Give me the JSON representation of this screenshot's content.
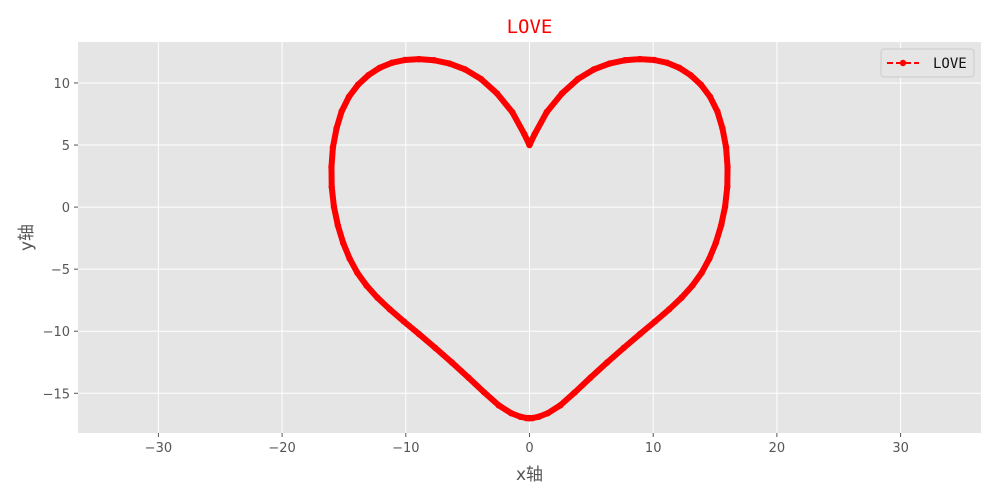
{
  "chart_data": {
    "type": "line",
    "title": "LOVE",
    "xlabel": "x轴",
    "ylabel": "y轴",
    "xlim": [
      -36.5,
      36.5
    ],
    "ylim": [
      -18.2,
      13.3
    ],
    "xticks": [
      -30,
      -20,
      -10,
      0,
      10,
      20,
      30
    ],
    "yticks": [
      10,
      5,
      0,
      -5,
      -10,
      -15
    ],
    "xtick_labels": [
      "−30",
      "−20",
      "−10",
      "0",
      "10",
      "20",
      "30"
    ],
    "ytick_labels": [
      "10",
      "5",
      "0",
      "−5",
      "−10",
      "−15"
    ],
    "grid": true,
    "legend_position": "top-right",
    "series": [
      {
        "name": "LOVE",
        "color": "#ff0000",
        "line_style": "dashed",
        "marker": "circle",
        "x": [
          0,
          0.42,
          1.39,
          2.63,
          3.91,
          5.2,
          6.46,
          7.71,
          8.93,
          10.08,
          11.14,
          12.11,
          13.02,
          13.86,
          14.6,
          15.19,
          15.6,
          15.89,
          16.01,
          15.99,
          15.81,
          15.49,
          15.06,
          14.54,
          13.92,
          13.17,
          12.29,
          11.29,
          10.16,
          8.93,
          7.62,
          6.27,
          4.93,
          3.65,
          2.49,
          1.49,
          0.72,
          0.24,
          0.02,
          0,
          -0.02,
          -0.24,
          -0.72,
          -1.49,
          -2.49,
          -3.65,
          -4.93,
          -6.27,
          -7.62,
          -8.93,
          -10.16,
          -11.29,
          -12.29,
          -13.17,
          -13.92,
          -14.54,
          -15.06,
          -15.49,
          -15.81,
          -15.99,
          -16.01,
          -15.89,
          -15.6,
          -15.19,
          -14.6,
          -13.86,
          -13.02,
          -12.11,
          -11.14,
          -10.08,
          -8.93,
          -7.71,
          -6.46,
          -5.2,
          -3.91,
          -2.63,
          -1.39,
          -0.42,
          0
        ],
        "y": [
          5,
          5.88,
          7.65,
          9.16,
          10.31,
          11.09,
          11.56,
          11.83,
          11.92,
          11.85,
          11.62,
          11.22,
          10.63,
          9.86,
          8.88,
          7.7,
          6.34,
          4.83,
          3.24,
          1.63,
          0.03,
          -1.48,
          -2.89,
          -4.15,
          -5.29,
          -6.33,
          -7.3,
          -8.24,
          -9.21,
          -10.23,
          -11.34,
          -12.52,
          -13.74,
          -14.94,
          -15.97,
          -16.6,
          -16.9,
          -17,
          -17,
          -17,
          -17,
          -17,
          -16.9,
          -16.6,
          -15.97,
          -14.94,
          -13.74,
          -12.52,
          -11.34,
          -10.23,
          -9.21,
          -8.24,
          -7.3,
          -6.33,
          -5.29,
          -4.15,
          -2.89,
          -1.48,
          0.03,
          1.63,
          3.24,
          4.83,
          6.34,
          7.7,
          8.88,
          9.86,
          10.63,
          11.22,
          11.62,
          11.85,
          11.92,
          11.83,
          11.56,
          11.09,
          10.31,
          9.16,
          7.65,
          5.88,
          5
        ]
      }
    ]
  },
  "style": {
    "background": "#ffffff",
    "plot_background": "#e5e5e5",
    "grid_color": "#ffffff",
    "title_color": "#ff0000",
    "line_color": "#ff0000"
  }
}
